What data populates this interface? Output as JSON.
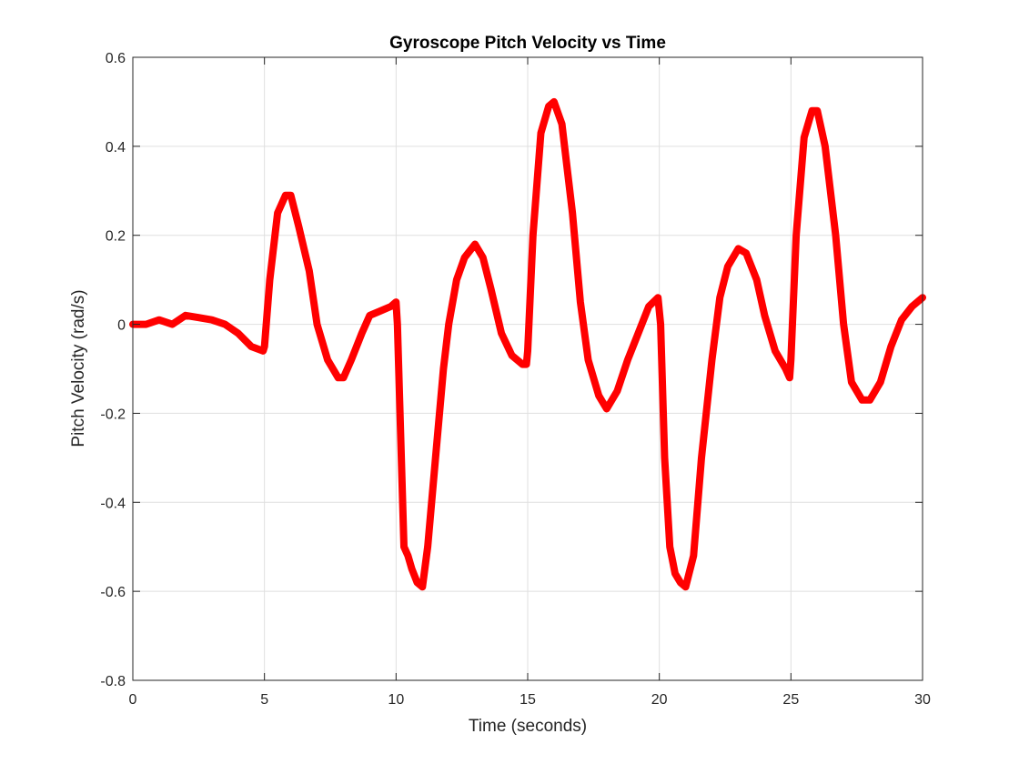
{
  "chart_data": {
    "type": "line",
    "title": "Gyroscope Pitch Velocity vs Time",
    "xlabel": "Time (seconds)",
    "ylabel": "Pitch Velocity (rad/s)",
    "xlim": [
      0,
      30
    ],
    "ylim": [
      -0.8,
      0.6
    ],
    "xticks": [
      0,
      5,
      10,
      15,
      20,
      25,
      30
    ],
    "yticks": [
      -0.8,
      -0.6,
      -0.4,
      -0.2,
      0,
      0.2,
      0.4,
      0.6
    ],
    "xtick_labels": [
      "0",
      "5",
      "10",
      "15",
      "20",
      "25",
      "30"
    ],
    "ytick_labels": [
      "-0.8",
      "-0.6",
      "-0.4",
      "-0.2",
      "0",
      "0.2",
      "0.4",
      "0.6"
    ],
    "grid": true,
    "box": true,
    "series": [
      {
        "color": "#ff0000",
        "x": [
          0,
          0.5,
          1.0,
          1.5,
          2.0,
          2.5,
          3.0,
          3.5,
          4.0,
          4.5,
          4.95,
          5.0,
          5.2,
          5.5,
          5.8,
          6.0,
          6.3,
          6.7,
          7.0,
          7.4,
          7.8,
          8.0,
          8.3,
          8.7,
          9.0,
          9.4,
          9.8,
          10.0,
          10.05,
          10.2,
          10.3,
          10.45,
          10.6,
          10.8,
          11.0,
          11.2,
          11.5,
          11.8,
          12.0,
          12.3,
          12.6,
          13.0,
          13.3,
          13.6,
          14.0,
          14.4,
          14.8,
          14.95,
          15.0,
          15.2,
          15.5,
          15.8,
          16.0,
          16.3,
          16.7,
          17.0,
          17.3,
          17.7,
          18.0,
          18.4,
          18.8,
          19.2,
          19.6,
          19.95,
          20.05,
          20.2,
          20.4,
          20.6,
          20.8,
          21.0,
          21.3,
          21.6,
          22.0,
          22.3,
          22.6,
          23.0,
          23.3,
          23.7,
          24.0,
          24.4,
          24.8,
          24.95,
          25.0,
          25.2,
          25.5,
          25.8,
          26.0,
          26.3,
          26.7,
          27.0,
          27.3,
          27.7,
          28.0,
          28.4,
          28.8,
          29.2,
          29.6,
          30.0
        ],
        "y": [
          0,
          0.0,
          0.01,
          0.0,
          0.02,
          0.015,
          0.01,
          0.0,
          -0.02,
          -0.05,
          -0.06,
          -0.05,
          0.1,
          0.25,
          0.29,
          0.29,
          0.22,
          0.12,
          0.0,
          -0.08,
          -0.12,
          -0.12,
          -0.08,
          -0.02,
          0.02,
          0.03,
          0.04,
          0.05,
          0.0,
          -0.3,
          -0.5,
          -0.52,
          -0.55,
          -0.58,
          -0.59,
          -0.5,
          -0.3,
          -0.1,
          0.0,
          0.1,
          0.15,
          0.18,
          0.15,
          0.08,
          -0.02,
          -0.07,
          -0.09,
          -0.09,
          -0.06,
          0.2,
          0.43,
          0.49,
          0.5,
          0.45,
          0.25,
          0.05,
          -0.08,
          -0.16,
          -0.19,
          -0.15,
          -0.08,
          -0.02,
          0.04,
          0.06,
          0.0,
          -0.3,
          -0.5,
          -0.56,
          -0.58,
          -0.59,
          -0.52,
          -0.3,
          -0.08,
          0.06,
          0.13,
          0.17,
          0.16,
          0.1,
          0.02,
          -0.06,
          -0.1,
          -0.12,
          -0.08,
          0.2,
          0.42,
          0.48,
          0.48,
          0.4,
          0.2,
          0.0,
          -0.13,
          -0.17,
          -0.17,
          -0.13,
          -0.05,
          0.01,
          0.04,
          0.06
        ]
      }
    ]
  }
}
